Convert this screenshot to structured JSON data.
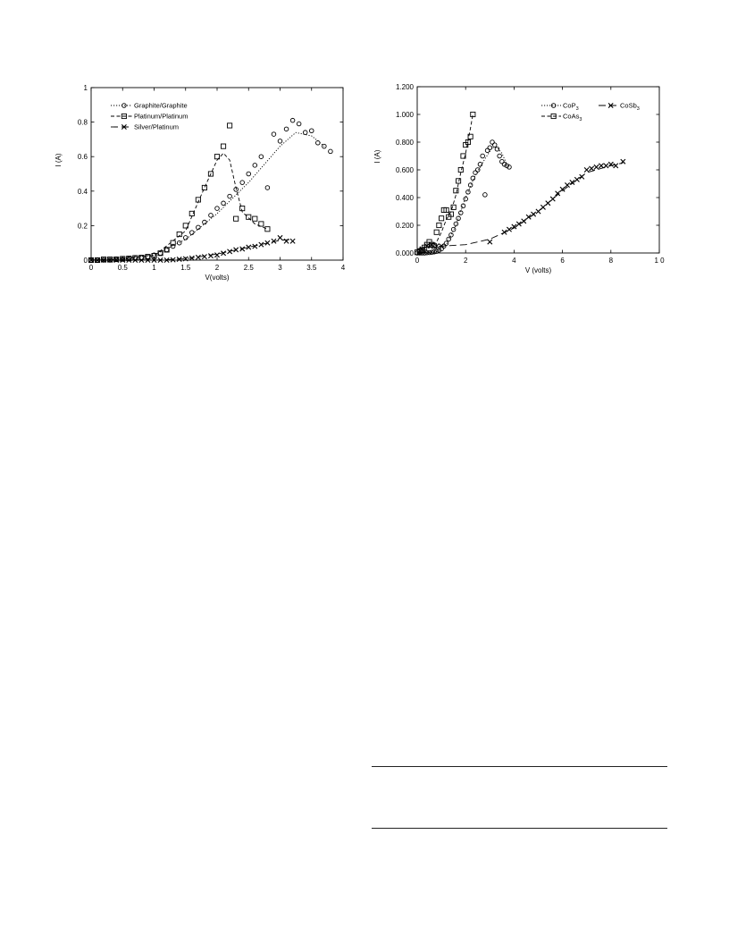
{
  "chart_data": [
    {
      "type": "scatter",
      "xlabel": "V(volts)",
      "ylabel": "I  (A)",
      "xlim": [
        0,
        4
      ],
      "ylim": [
        0,
        1
      ],
      "x_ticks": [
        0,
        0.5,
        1,
        1.5,
        2,
        2.5,
        3,
        3.5,
        4
      ],
      "x_tick_labels": [
        "0",
        "0.5",
        "1",
        "1.5",
        "2",
        "2.5",
        "3",
        "3.5",
        "4"
      ],
      "y_ticks": [
        0,
        0.2,
        0.4,
        0.6,
        0.8,
        1
      ],
      "y_tick_labels": [
        "0",
        "0.2",
        "0.4",
        "0.6",
        "0.8",
        "1"
      ],
      "grid": false,
      "legend_position": "top-left",
      "series": [
        {
          "name": "Graphite/Graphite",
          "marker": "circle",
          "line": "dotted",
          "x": [
            0.0,
            0.1,
            0.2,
            0.3,
            0.4,
            0.5,
            0.6,
            0.7,
            0.8,
            0.9,
            1.0,
            1.1,
            1.2,
            1.3,
            1.4,
            1.5,
            1.6,
            1.7,
            1.8,
            1.9,
            2.0,
            2.1,
            2.2,
            2.3,
            2.4,
            2.5,
            2.6,
            2.7,
            2.8,
            2.9,
            3.0,
            3.1,
            3.2,
            3.3,
            3.4,
            3.5,
            3.6,
            3.7,
            3.8
          ],
          "y": [
            0.0,
            0.0,
            0.0,
            0.0,
            0.005,
            0.005,
            0.008,
            0.01,
            0.015,
            0.02,
            0.03,
            0.04,
            0.06,
            0.08,
            0.1,
            0.13,
            0.16,
            0.19,
            0.22,
            0.26,
            0.3,
            0.33,
            0.37,
            0.41,
            0.45,
            0.5,
            0.55,
            0.6,
            0.42,
            0.73,
            0.69,
            0.76,
            0.81,
            0.79,
            0.74,
            0.75,
            0.68,
            0.66,
            0.63
          ],
          "trend_x": [
            0.0,
            0.5,
            1.0,
            1.5,
            2.0,
            2.5,
            3.0,
            3.25,
            3.5,
            3.7
          ],
          "trend_y": [
            0.0,
            0.005,
            0.03,
            0.12,
            0.27,
            0.45,
            0.66,
            0.74,
            0.72,
            0.66
          ]
        },
        {
          "name": "Platinum/Platinum",
          "marker": "square",
          "line": "dashed",
          "x": [
            0.0,
            0.1,
            0.2,
            0.3,
            0.4,
            0.5,
            0.6,
            0.7,
            0.8,
            0.9,
            1.0,
            1.1,
            1.2,
            1.3,
            1.4,
            1.5,
            1.6,
            1.7,
            1.8,
            1.9,
            2.0,
            2.1,
            2.2,
            2.3,
            2.4,
            2.5,
            2.6,
            2.7,
            2.8
          ],
          "y": [
            0.0,
            0.0,
            0.005,
            0.005,
            0.005,
            0.008,
            0.01,
            0.013,
            0.015,
            0.02,
            0.025,
            0.04,
            0.06,
            0.1,
            0.15,
            0.2,
            0.27,
            0.35,
            0.42,
            0.5,
            0.6,
            0.66,
            0.78,
            0.24,
            0.3,
            0.25,
            0.24,
            0.21,
            0.18
          ],
          "trend_x": [
            0.0,
            1.0,
            1.5,
            1.8,
            2.0,
            2.1,
            2.2,
            2.3,
            2.4,
            2.6,
            2.8
          ],
          "trend_y": [
            0.0,
            0.025,
            0.17,
            0.42,
            0.58,
            0.62,
            0.58,
            0.42,
            0.28,
            0.21,
            0.18
          ]
        },
        {
          "name": "Silver/Platinum",
          "marker": "x",
          "line": "long-dash",
          "x": [
            0.0,
            0.1,
            0.2,
            0.3,
            0.4,
            0.5,
            0.6,
            0.7,
            0.8,
            0.9,
            1.0,
            1.1,
            1.2,
            1.3,
            1.4,
            1.5,
            1.6,
            1.7,
            1.8,
            1.9,
            2.0,
            2.1,
            2.2,
            2.3,
            2.4,
            2.5,
            2.6,
            2.7,
            2.8,
            2.9,
            3.0,
            3.1,
            3.2
          ],
          "y": [
            0.0,
            0.0,
            0.0,
            0.0,
            0.0,
            0.0,
            0.0,
            0.0,
            0.0,
            0.0,
            0.0,
            0.0,
            0.0,
            0.002,
            0.005,
            0.008,
            0.012,
            0.016,
            0.02,
            0.025,
            0.03,
            0.04,
            0.05,
            0.06,
            0.065,
            0.075,
            0.08,
            0.09,
            0.1,
            0.11,
            0.13,
            0.11,
            0.11
          ],
          "trend_x": [
            0.0,
            1.0,
            1.5,
            2.0,
            2.5,
            3.0,
            3.2
          ],
          "trend_y": [
            0.0,
            0.0,
            0.008,
            0.035,
            0.075,
            0.115,
            0.12
          ]
        }
      ]
    },
    {
      "type": "scatter",
      "xlabel": "V  (volts)",
      "ylabel": "I  (A)",
      "xlim": [
        0,
        10
      ],
      "ylim": [
        0,
        1.2
      ],
      "x_ticks": [
        0,
        2,
        4,
        6,
        8,
        10
      ],
      "x_tick_labels": [
        "0",
        "2",
        "4",
        "6",
        "8",
        "1 0"
      ],
      "y_ticks": [
        0,
        0.2,
        0.4,
        0.6,
        0.8,
        1.0,
        1.2
      ],
      "y_tick_labels": [
        "0.000",
        "0.200",
        "0.400",
        "0.600",
        "0.800",
        "1.000",
        "1.200"
      ],
      "grid": false,
      "legend_position": "top-right",
      "series": [
        {
          "name_base": "CoP",
          "name_sub": "3",
          "marker": "circle",
          "line": "dotted",
          "x": [
            0.0,
            0.1,
            0.2,
            0.3,
            0.4,
            0.5,
            0.6,
            0.7,
            0.8,
            0.9,
            1.0,
            1.1,
            1.2,
            1.3,
            1.4,
            1.5,
            1.6,
            1.7,
            1.8,
            1.9,
            2.0,
            2.1,
            2.2,
            2.3,
            2.4,
            2.5,
            2.6,
            2.7,
            2.8,
            2.9,
            3.0,
            3.1,
            3.2,
            3.3,
            3.4,
            3.5,
            3.6,
            3.7,
            3.8
          ],
          "y": [
            0.0,
            0.0,
            0.0,
            0.0,
            0.002,
            0.003,
            0.005,
            0.008,
            0.012,
            0.02,
            0.03,
            0.05,
            0.07,
            0.1,
            0.13,
            0.17,
            0.21,
            0.25,
            0.29,
            0.34,
            0.39,
            0.44,
            0.49,
            0.54,
            0.58,
            0.6,
            0.64,
            0.7,
            0.42,
            0.74,
            0.76,
            0.8,
            0.78,
            0.75,
            0.7,
            0.66,
            0.64,
            0.63,
            0.62
          ],
          "trend_x": [
            0.0,
            0.8,
            1.2,
            1.6,
            2.0,
            2.4,
            2.8,
            3.1,
            3.3,
            3.5,
            3.7
          ],
          "trend_y": [
            0.0,
            0.01,
            0.06,
            0.2,
            0.4,
            0.56,
            0.68,
            0.76,
            0.76,
            0.72,
            0.64
          ]
        },
        {
          "name_base": "CoAs",
          "name_sub": "3",
          "marker": "square",
          "line": "dashed",
          "x": [
            0.0,
            0.1,
            0.2,
            0.3,
            0.4,
            0.5,
            0.6,
            0.7,
            0.8,
            0.9,
            1.0,
            1.1,
            1.2,
            1.3,
            1.4,
            1.5,
            1.6,
            1.7,
            1.8,
            1.9,
            2.0,
            2.1,
            2.2,
            2.3
          ],
          "y": [
            0.005,
            0.01,
            0.02,
            0.04,
            0.06,
            0.08,
            0.06,
            0.05,
            0.15,
            0.2,
            0.25,
            0.31,
            0.31,
            0.26,
            0.28,
            0.33,
            0.45,
            0.52,
            0.6,
            0.7,
            0.78,
            0.8,
            0.84,
            1.0
          ],
          "trend_x": [
            0.0,
            0.4,
            0.8,
            1.0,
            1.2,
            1.4,
            1.6,
            1.8,
            2.0,
            2.2,
            2.3
          ],
          "trend_y": [
            0.0,
            0.04,
            0.08,
            0.15,
            0.24,
            0.3,
            0.42,
            0.58,
            0.72,
            0.9,
            1.0
          ]
        },
        {
          "name_base": "CoSb",
          "name_sub": "3",
          "marker": "x",
          "line": "long-dash",
          "x": [
            0.2,
            0.4,
            0.6,
            0.8,
            1.0,
            3.0,
            3.6,
            3.8,
            4.0,
            4.2,
            4.4,
            4.6,
            4.8,
            5.0,
            5.2,
            5.4,
            5.6,
            5.8,
            6.0,
            6.2,
            6.4,
            6.6,
            6.8,
            7.0,
            7.2,
            7.4,
            7.6,
            7.8,
            8.0,
            8.2,
            8.5
          ],
          "y": [
            0.03,
            0.05,
            0.06,
            0.05,
            0.05,
            0.08,
            0.15,
            0.17,
            0.19,
            0.21,
            0.23,
            0.26,
            0.28,
            0.3,
            0.33,
            0.36,
            0.39,
            0.43,
            0.46,
            0.49,
            0.51,
            0.53,
            0.55,
            0.6,
            0.61,
            0.62,
            0.63,
            0.63,
            0.64,
            0.63,
            0.66
          ],
          "trend_x": [
            0.0,
            1.0,
            2.0,
            3.0,
            4.0,
            5.0,
            6.0,
            7.0,
            8.0,
            8.5
          ],
          "trend_y": [
            0.03,
            0.05,
            0.06,
            0.1,
            0.18,
            0.3,
            0.45,
            0.58,
            0.63,
            0.65
          ]
        }
      ]
    }
  ]
}
